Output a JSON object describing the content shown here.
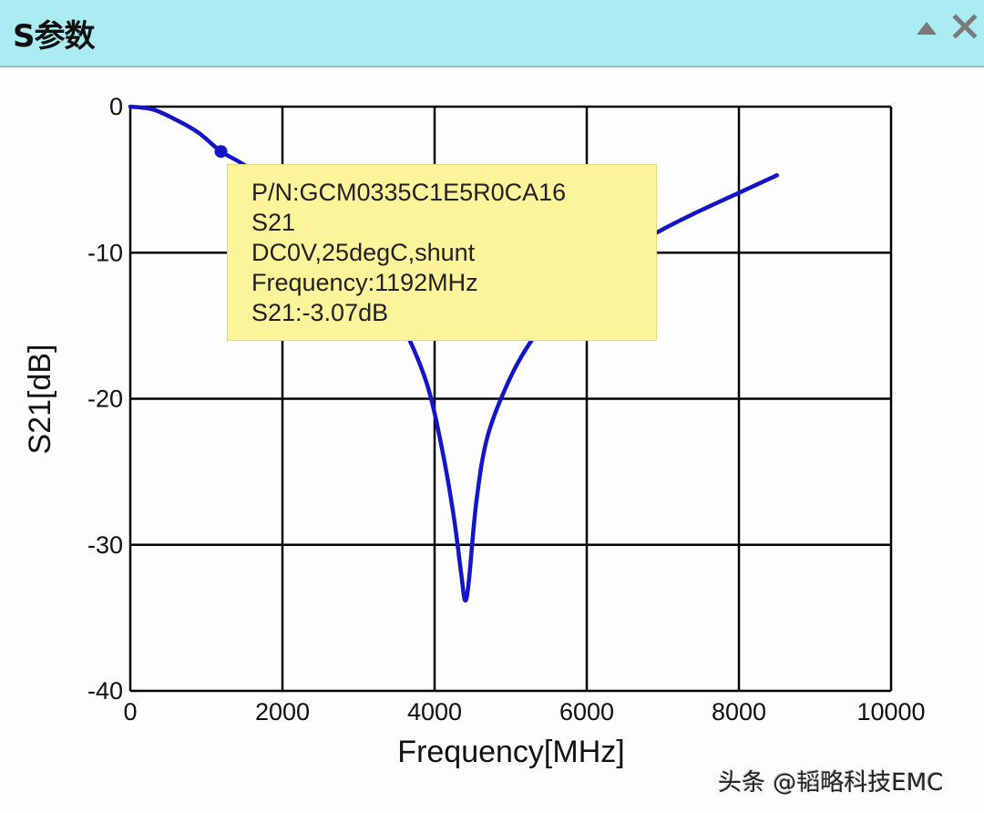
{
  "window": {
    "title": "S参数",
    "collapse_icon": "triangle-up-icon",
    "close_icon": "close-x-icon"
  },
  "tooltip": {
    "lines": [
      "P/N:GCM0335C1E5R0CA16",
      "S21",
      "DC0V,25degC,shunt",
      "Frequency:1192MHz",
      "S21:-3.07dB"
    ]
  },
  "watermark": "头条 @韬略科技EMC",
  "colors": {
    "titlebar": "#abebf2",
    "trace": "#1414c8",
    "tooltip": "#fbf49a",
    "grid": "#000000"
  },
  "chart_data": {
    "type": "line",
    "title": "",
    "xlabel": "Frequency[MHz]",
    "ylabel": "S21[dB]",
    "xlim": [
      0,
      10000
    ],
    "ylim": [
      -40,
      0
    ],
    "xticks": [
      "0",
      "2000",
      "4000",
      "6000",
      "8000",
      "10000"
    ],
    "yticks": [
      "0",
      "-10",
      "-20",
      "-30",
      "-40"
    ],
    "grid": true,
    "legend": null,
    "series": [
      {
        "name": "S21",
        "x": [
          0,
          300,
          600,
          900,
          1192,
          1500,
          2000,
          2500,
          3000,
          3300,
          3600,
          3900,
          4100,
          4250,
          4350,
          4400,
          4450,
          4550,
          4700,
          5000,
          5300,
          5600,
          6000,
          6500,
          7000,
          7500,
          8000,
          8500
        ],
        "y": [
          0,
          -0.2,
          -0.9,
          -1.8,
          -3.07,
          -4.0,
          -5.9,
          -8.0,
          -10.6,
          -12.6,
          -15.2,
          -19.0,
          -23.5,
          -28.0,
          -32.0,
          -33.8,
          -32.5,
          -27.0,
          -22.5,
          -18.5,
          -15.8,
          -13.7,
          -11.7,
          -9.9,
          -8.4,
          -7.1,
          -5.9,
          -4.7
        ]
      }
    ],
    "marker": {
      "x": 1192,
      "y": -3.07
    },
    "annotations": [
      "P/N:GCM0335C1E5R0CA16",
      "S21",
      "DC0V,25degC,shunt",
      "Frequency:1192MHz",
      "S21:-3.07dB"
    ]
  }
}
